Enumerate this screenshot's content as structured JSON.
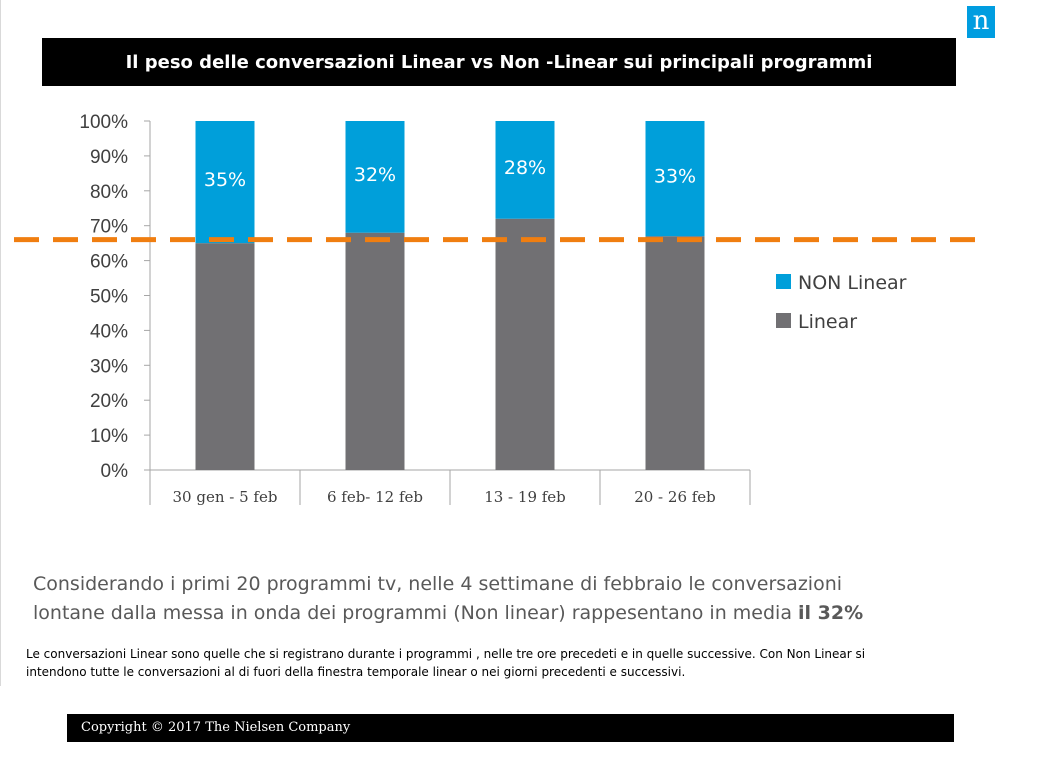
{
  "header": {
    "logo_letter": "n",
    "title": "Il peso delle conversazioni Linear vs Non -Linear sui principali programmi"
  },
  "chart_data": {
    "type": "bar",
    "stacked": true,
    "categories": [
      "30 gen - 5 feb",
      "6 feb- 12 feb",
      "13 - 19 feb",
      "20 - 26 feb"
    ],
    "series": [
      {
        "name": "Linear",
        "values": [
          65,
          68,
          72,
          67
        ],
        "color": "#717073"
      },
      {
        "name": "NON Linear",
        "values": [
          35,
          32,
          28,
          33
        ],
        "color": "#009fda"
      }
    ],
    "data_labels": [
      "35%",
      "32%",
      "28%",
      "33%"
    ],
    "ylim": [
      0,
      100
    ],
    "yticks": [
      "0%",
      "10%",
      "20%",
      "30%",
      "40%",
      "50%",
      "60%",
      "70%",
      "80%",
      "90%",
      "100%"
    ],
    "average_line": {
      "value": 66,
      "color": "#f07e10",
      "style": "dashed"
    },
    "legend_position": "right",
    "grid": false
  },
  "summary": {
    "text_line1": "Considerando i primi 20 programmi tv, nelle  4 settimane di febbraio  le conversazioni",
    "text_line2": "lontane dalla messa in onda dei programmi (Non linear) rappesentano in media ",
    "highlight": "il 32%"
  },
  "footnote": "Le conversazioni Linear sono quelle che si registrano durante i programmi , nelle tre ore precedeti e in quelle successive. Con Non Linear si intendono tutte le conversazioni al di fuori della finestra temporale linear o nei giorni precedenti e successivi.",
  "footer": {
    "copyright": "Copyright © 2017 The Nielsen Company"
  }
}
